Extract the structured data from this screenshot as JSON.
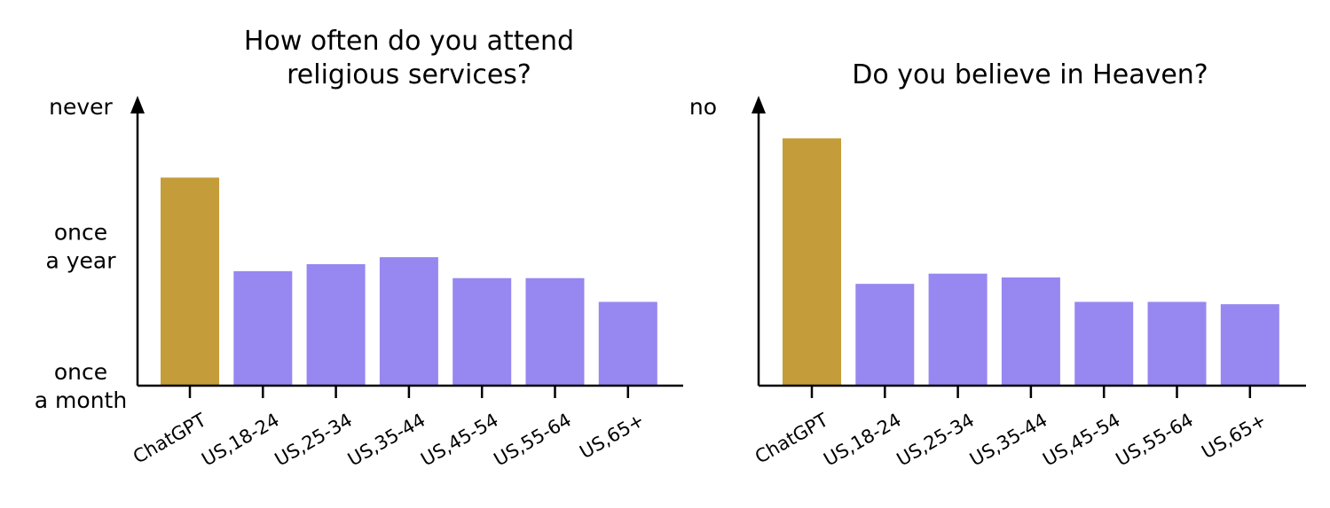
{
  "chart_data": [
    {
      "type": "bar",
      "title": [
        "How often do you attend",
        "religious services?"
      ],
      "categories": [
        "ChatGPT",
        "US,18-24",
        "US,25-34",
        "US,35-44",
        "US,45-54",
        "US,55-64",
        "US,65+"
      ],
      "values": [
        2.49,
        1.82,
        1.87,
        1.92,
        1.77,
        1.77,
        1.6
      ],
      "ylim": [
        1.0,
        3.0
      ],
      "yticks": [
        {
          "value": 3.0,
          "label": [
            "never"
          ]
        },
        {
          "value": 2.0,
          "label": [
            "once",
            "a year"
          ]
        },
        {
          "value": 1.0,
          "label": [
            "once",
            "a month"
          ]
        }
      ],
      "bar_colors": [
        "#c49c3a",
        "#9787f0",
        "#9787f0",
        "#9787f0",
        "#9787f0",
        "#9787f0",
        "#9787f0"
      ],
      "grid": false,
      "xlabel": "",
      "ylabel": ""
    },
    {
      "type": "bar",
      "title": [
        "Do you believe in Heaven?"
      ],
      "categories": [
        "ChatGPT",
        "US,18-24",
        "US,25-34",
        "US,35-44",
        "US,45-54",
        "US,55-64",
        "US,65+"
      ],
      "values": [
        0.85,
        0.35,
        0.385,
        0.372,
        0.288,
        0.288,
        0.28
      ],
      "ylim": [
        0.0,
        0.96
      ],
      "yticks": [
        {
          "value": 0.96,
          "label": [
            "no"
          ]
        }
      ],
      "bar_colors": [
        "#c49c3a",
        "#9787f0",
        "#9787f0",
        "#9787f0",
        "#9787f0",
        "#9787f0",
        "#9787f0"
      ],
      "grid": false,
      "xlabel": "",
      "ylabel": ""
    }
  ]
}
